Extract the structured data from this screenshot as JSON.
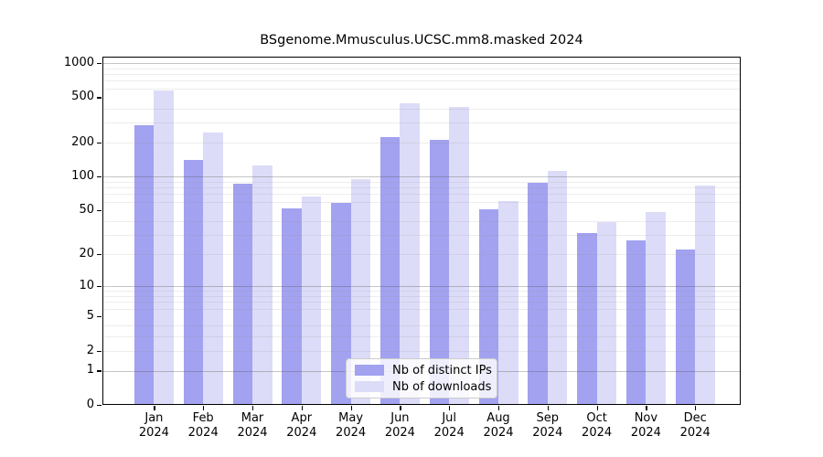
{
  "chart_data": {
    "type": "bar",
    "title": "BSgenome.Mmusculus.UCSC.mm8.masked 2024",
    "categories": [
      "Jan",
      "Feb",
      "Mar",
      "Apr",
      "May",
      "Jun",
      "Jul",
      "Aug",
      "Sep",
      "Oct",
      "Nov",
      "Dec"
    ],
    "category_year": "2024",
    "series": [
      {
        "name": "Nb of distinct IPs",
        "color": "#a2a2f0",
        "values": [
          282,
          139,
          86,
          52,
          58,
          225,
          212,
          51,
          88,
          31,
          27,
          22
        ]
      },
      {
        "name": "Nb of downloads",
        "color": "#dcdcf8",
        "values": [
          577,
          243,
          125,
          67,
          95,
          445,
          415,
          60,
          112,
          39,
          48,
          84
        ]
      }
    ],
    "xlabel": "",
    "ylabel": "",
    "yticks": [
      0,
      1,
      2,
      5,
      10,
      20,
      50,
      100,
      200,
      500,
      1000
    ],
    "ylim": [
      0,
      1000
    ],
    "yscale": "log1p",
    "grid": "both",
    "grid_major_values": [
      1,
      10,
      100,
      1000
    ],
    "grid_minor_values": [
      2,
      3,
      4,
      6,
      7,
      8,
      9,
      20,
      30,
      40,
      60,
      70,
      80,
      90,
      200,
      300,
      400,
      600,
      700,
      800,
      900
    ],
    "legend_position": "lower center"
  }
}
